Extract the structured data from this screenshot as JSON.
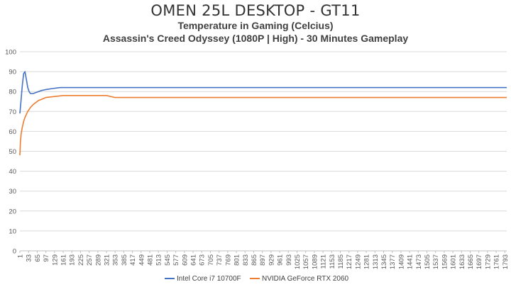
{
  "chart_data": {
    "type": "line",
    "title": "OMEN 25L DESKTOP - GT11",
    "subtitle": "Temperature in Gaming (Celcius)",
    "subtitle2": "Assassin's Creed Odyssey (1080P | High) - 30 Minutes Gameplay",
    "xlabel": "",
    "ylabel": "",
    "ylim": [
      0,
      100
    ],
    "yticks": [
      0,
      10,
      20,
      30,
      40,
      50,
      60,
      70,
      80,
      90,
      100
    ],
    "xlim": [
      1,
      1800
    ],
    "xticks": [
      1,
      33,
      65,
      97,
      129,
      161,
      193,
      225,
      257,
      289,
      321,
      353,
      385,
      417,
      449,
      481,
      513,
      545,
      577,
      609,
      641,
      673,
      705,
      737,
      769,
      801,
      833,
      865,
      897,
      929,
      961,
      993,
      1025,
      1057,
      1089,
      1121,
      1153,
      1185,
      1217,
      1249,
      1281,
      1313,
      1345,
      1377,
      1409,
      1441,
      1473,
      1505,
      1537,
      1569,
      1601,
      1633,
      1665,
      1697,
      1729,
      1761,
      1793
    ],
    "grid": true,
    "legend_position": "bottom",
    "series": [
      {
        "name": "Intel Core i7 10700F",
        "color": "#4472C4",
        "x": [
          1,
          5,
          10,
          15,
          20,
          25,
          30,
          35,
          40,
          50,
          60,
          70,
          80,
          97,
          120,
          150,
          200,
          250,
          300,
          350,
          400,
          450,
          500,
          550,
          600,
          650,
          700,
          750,
          800,
          850,
          870,
          900,
          950,
          1000,
          1050,
          1100,
          1121,
          1150,
          1200,
          1250,
          1300,
          1350,
          1400,
          1450,
          1500,
          1550,
          1600,
          1650,
          1700,
          1720,
          1750,
          1793,
          1800
        ],
        "values": [
          69,
          75,
          83,
          89,
          90,
          86,
          82,
          80,
          79,
          79,
          79.5,
          80,
          80.5,
          81,
          81.5,
          82,
          82,
          82,
          82,
          82,
          82,
          82,
          82,
          82,
          82,
          82,
          82,
          82,
          82,
          82,
          82,
          82,
          82,
          82,
          82,
          82,
          82,
          82,
          82,
          82,
          82,
          82,
          82,
          82,
          82,
          82,
          82,
          82,
          82,
          82,
          82,
          82,
          82
        ]
      },
      {
        "name": "NVIDIA GeForce RTX 2060",
        "color": "#ED7D31",
        "x": [
          1,
          3,
          6,
          10,
          15,
          20,
          30,
          40,
          50,
          60,
          70,
          80,
          97,
          129,
          161,
          193,
          225,
          257,
          289,
          321,
          353,
          385,
          417,
          500,
          600,
          700,
          800,
          900,
          1000,
          1100,
          1200,
          1300,
          1400,
          1500,
          1600,
          1700,
          1793,
          1800
        ],
        "values": [
          48,
          55,
          59,
          62,
          65,
          67,
          70,
          72,
          73.5,
          74.5,
          75.5,
          76,
          77,
          77.5,
          78,
          78,
          78,
          78,
          78,
          78,
          77,
          77,
          77,
          77,
          77,
          77,
          77,
          77,
          77,
          77,
          77,
          77,
          77,
          77,
          77,
          77,
          77,
          77
        ]
      }
    ]
  }
}
